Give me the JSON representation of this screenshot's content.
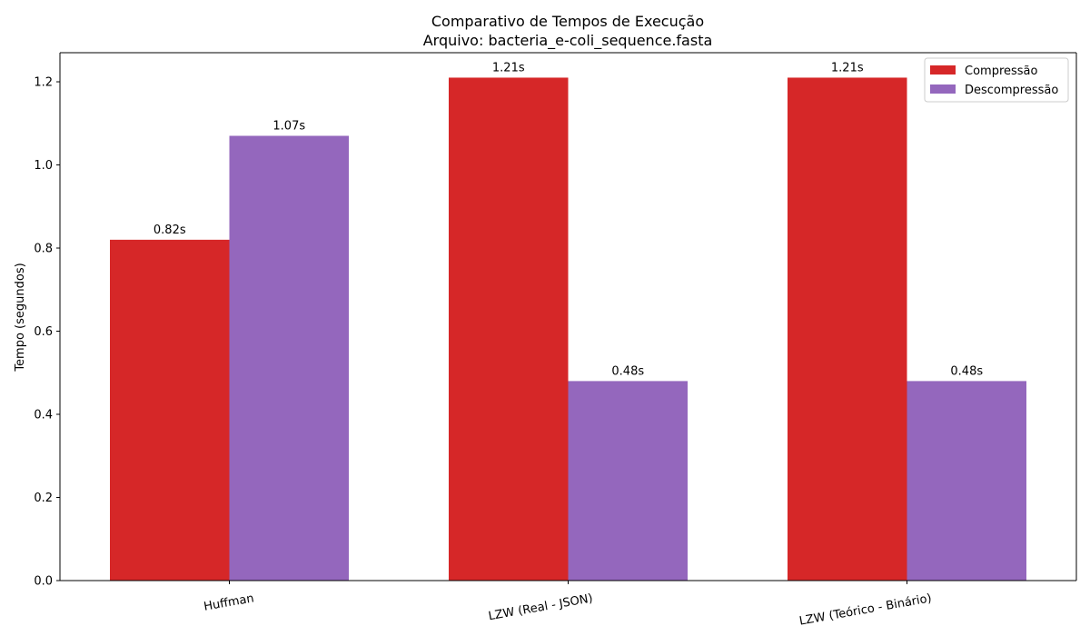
{
  "chart_data": {
    "type": "bar",
    "title": "Comparativo de Tempos de Execução",
    "subtitle": "Arquivo: bacteria_e-coli_sequence.fasta",
    "xlabel": "",
    "ylabel": "Tempo (segundos)",
    "categories": [
      "Huffman",
      "LZW (Real - JSON)",
      "LZW (Teórico - Binário)"
    ],
    "series": [
      {
        "name": "Compressão",
        "color": "#d62728",
        "values": [
          0.82,
          1.21,
          1.21
        ],
        "labels": [
          "0.82s",
          "1.21s",
          "1.21s"
        ]
      },
      {
        "name": "Descompressão",
        "color": "#9467bd",
        "values": [
          1.07,
          0.48,
          0.48
        ],
        "labels": [
          "1.07s",
          "0.48s",
          "0.48s"
        ]
      }
    ],
    "ylim": [
      0,
      1.27
    ],
    "yticks": [
      0.0,
      0.2,
      0.4,
      0.6,
      0.8,
      1.0,
      1.2
    ],
    "ytick_labels": [
      "0.0",
      "0.2",
      "0.4",
      "0.6",
      "0.8",
      "1.0",
      "1.2"
    ],
    "grid": false,
    "legend_position": "top-right"
  }
}
